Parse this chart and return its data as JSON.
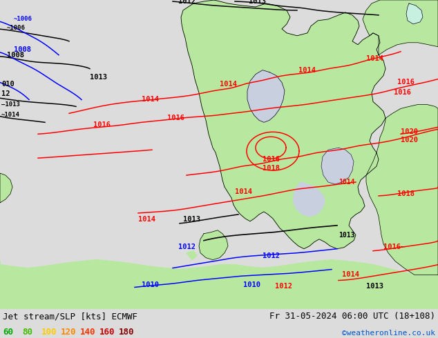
{
  "title_left": "Jet stream/SLP [kts] ECMWF",
  "title_right": "Fr 31-05-2024 06:00 UTC (18+108)",
  "copyright": "©weatheronline.co.uk",
  "legend_values": [
    "60",
    "80",
    "100",
    "120",
    "140",
    "160",
    "180"
  ],
  "legend_colors": [
    "#00aa00",
    "#44bb00",
    "#ffcc00",
    "#ff8800",
    "#ff3300",
    "#cc0000",
    "#880000"
  ],
  "bg_color": "#dcdcdc",
  "map_bg": "#d8d8e8",
  "land_color": "#b8e8a0",
  "sea_color": "#c8d8e8",
  "water_color": "#c8d0e0",
  "title_fontsize": 9,
  "legend_fontsize": 9,
  "fig_width": 6.34,
  "fig_height": 4.9,
  "dpi": 100,
  "bottom_bar_color": "#e8e8e8",
  "text_color": "#000000",
  "copyright_color": "#0055cc",
  "cyan_land": "#c8f0e0"
}
